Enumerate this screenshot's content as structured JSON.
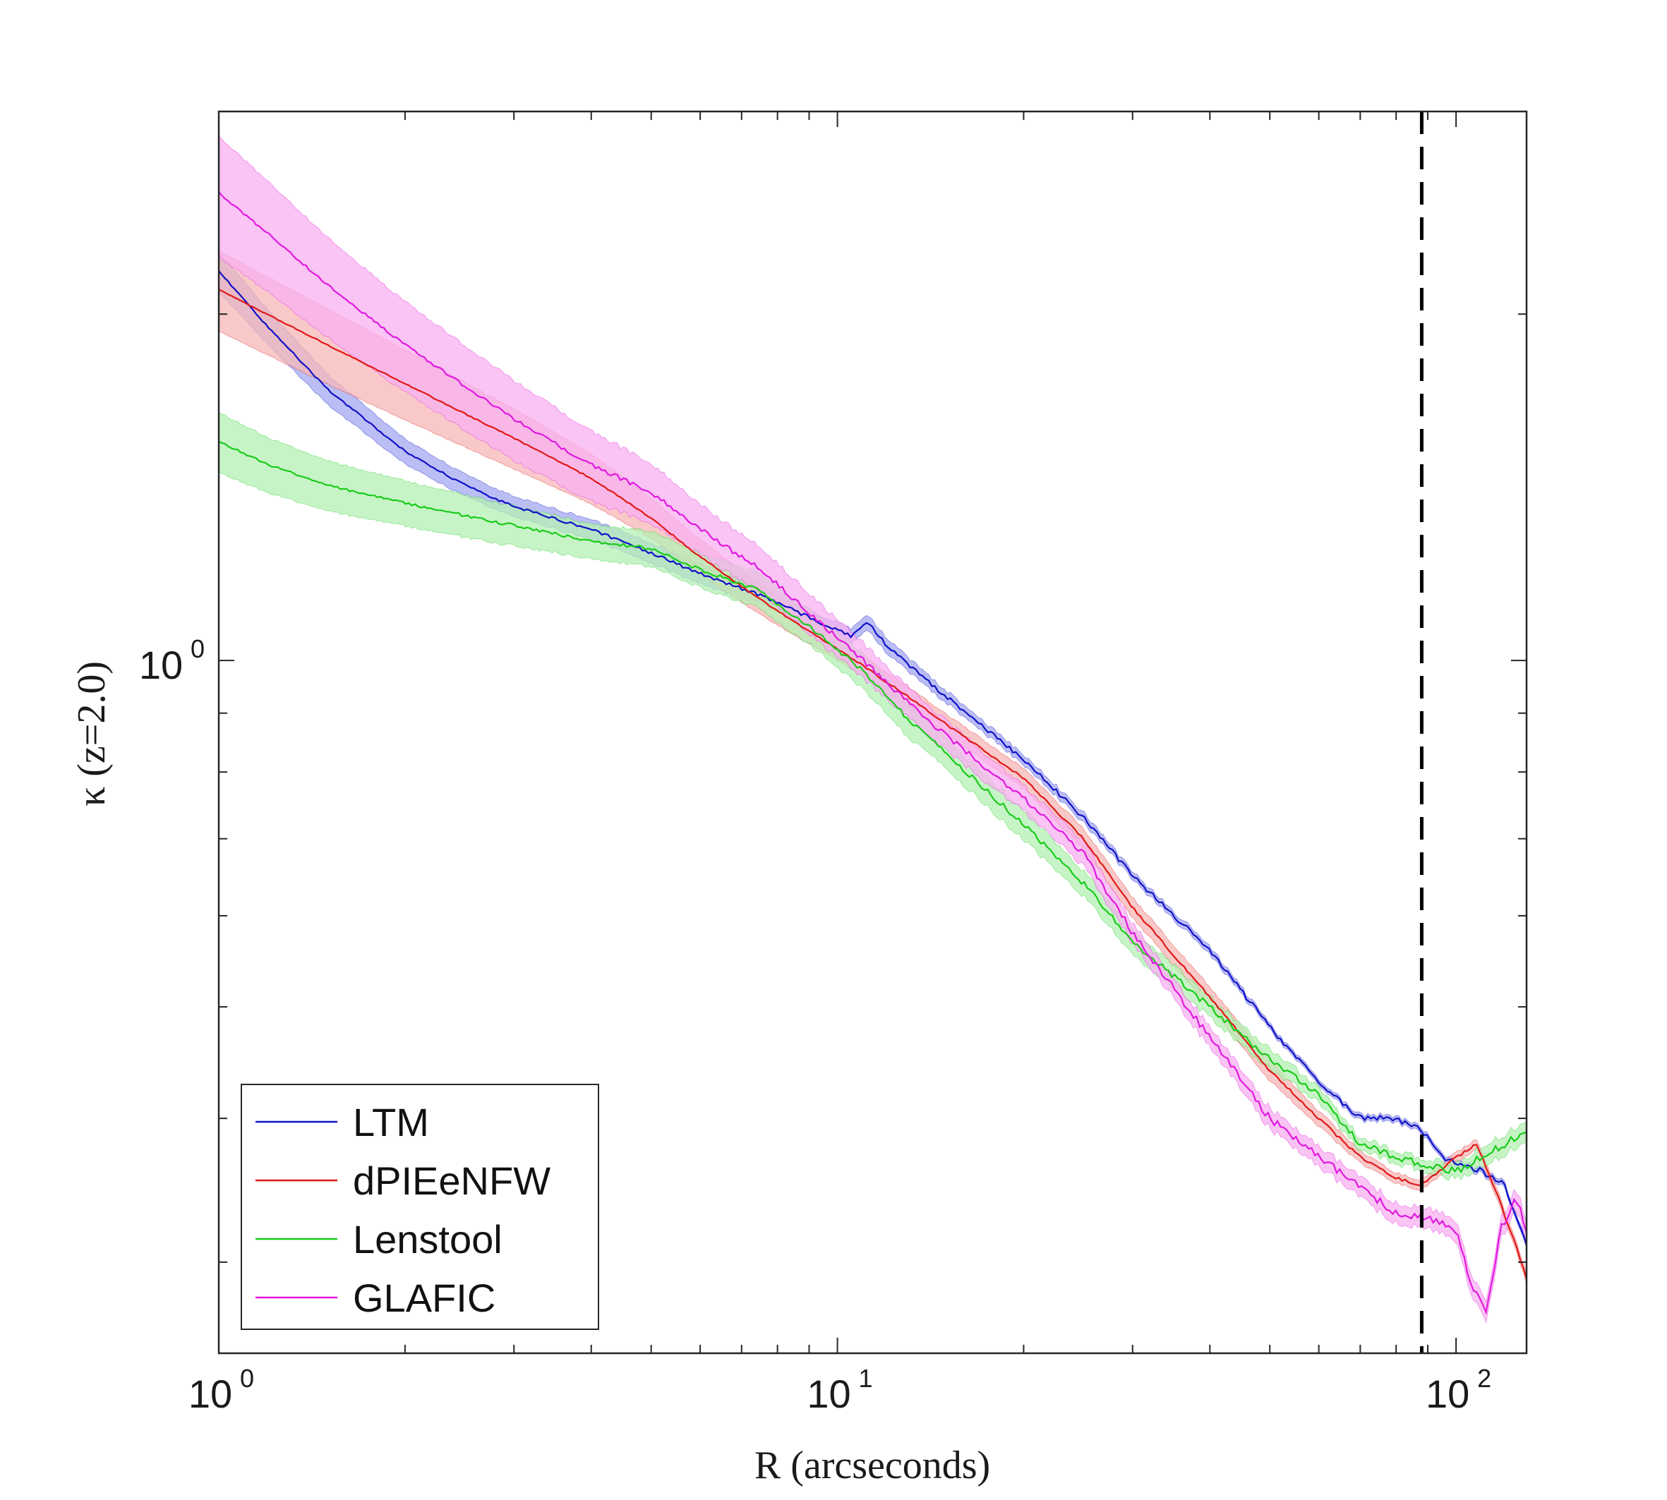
{
  "chart_data": {
    "type": "line",
    "title": "",
    "xlabel": "R (arcseconds)",
    "ylabel": "κ (z=2.0)",
    "xscale": "log",
    "yscale": "log",
    "xlim": [
      1,
      130
    ],
    "ylim": [
      0.25,
      3.0
    ],
    "grid": false,
    "legend_position": "bottom-left",
    "x_ticks": [
      {
        "base": "10",
        "exp": "0"
      },
      {
        "base": "10",
        "exp": "1"
      },
      {
        "base": "10",
        "exp": "2"
      }
    ],
    "y_ticks": [
      {
        "base": "10",
        "exp": "0"
      }
    ],
    "vline": {
      "x": 88,
      "style": "dashed",
      "color": "#000000"
    },
    "series": [
      {
        "name": "LTM",
        "color": "#1010c8",
        "band_color": "#a4a8f0",
        "x": [
          1.0,
          1.2,
          1.5,
          2.0,
          2.5,
          3.0,
          4.0,
          5.0,
          6.0,
          7.5,
          9.0,
          10.5,
          11.2,
          12.0,
          15.0,
          20.0,
          25.0,
          30.0,
          40.0,
          50.0,
          60.0,
          70.0,
          80.0,
          88.0,
          95.0,
          110.0,
          120.0,
          130.0
        ],
        "y": [
          2.18,
          1.95,
          1.72,
          1.52,
          1.42,
          1.36,
          1.3,
          1.24,
          1.19,
          1.14,
          1.09,
          1.05,
          1.08,
          1.03,
          0.93,
          0.82,
          0.73,
          0.65,
          0.56,
          0.48,
          0.43,
          0.4,
          0.4,
          0.39,
          0.37,
          0.36,
          0.35,
          0.31
        ],
        "band_halfwidth": [
          0.04,
          0.035,
          0.03,
          0.025,
          0.022,
          0.02,
          0.02,
          0.02,
          0.02,
          0.018,
          0.015,
          0.015,
          0.015,
          0.015,
          0.012,
          0.01,
          0.01,
          0.008,
          0.008,
          0.006,
          0.006,
          0.006,
          0.006,
          0.006,
          0.006,
          0.006,
          0.006,
          0.006
        ]
      },
      {
        "name": "dPIEeNFW",
        "color": "#e01818",
        "band_color": "#f7b7b7",
        "x": [
          1.0,
          1.5,
          2.0,
          3.0,
          4.0,
          5.0,
          6.0,
          7.5,
          9.0,
          11.0,
          13.0,
          15.0,
          20.0,
          25.0,
          30.0,
          40.0,
          50.0,
          60.0,
          70.0,
          80.0,
          88.0,
          100.0,
          108.0,
          115.0,
          125.0,
          130.0
        ],
        "y": [
          2.1,
          1.88,
          1.74,
          1.56,
          1.44,
          1.33,
          1.23,
          1.13,
          1.06,
          0.99,
          0.93,
          0.88,
          0.79,
          0.7,
          0.61,
          0.51,
          0.44,
          0.4,
          0.37,
          0.355,
          0.35,
          0.37,
          0.38,
          0.35,
          0.31,
          0.29
        ],
        "band_halfwidth": [
          0.08,
          0.075,
          0.07,
          0.06,
          0.05,
          0.04,
          0.035,
          0.03,
          0.025,
          0.02,
          0.02,
          0.02,
          0.02,
          0.02,
          0.02,
          0.02,
          0.02,
          0.015,
          0.012,
          0.01,
          0.01,
          0.01,
          0.01,
          0.01,
          0.01,
          0.01
        ]
      },
      {
        "name": "Lenstool",
        "color": "#18cc18",
        "band_color": "#b4f0b4",
        "x": [
          1.0,
          1.2,
          1.5,
          2.0,
          3.0,
          4.0,
          5.0,
          6.0,
          7.5,
          9.0,
          11.0,
          13.0,
          15.0,
          20.0,
          25.0,
          30.0,
          40.0,
          50.0,
          60.0,
          70.0,
          80.0,
          88.0,
          100.0,
          110.0,
          120.0,
          130.0
        ],
        "y": [
          1.55,
          1.48,
          1.42,
          1.37,
          1.31,
          1.27,
          1.25,
          1.2,
          1.15,
          1.07,
          0.98,
          0.89,
          0.83,
          0.72,
          0.64,
          0.57,
          0.5,
          0.45,
          0.42,
          0.38,
          0.37,
          0.365,
          0.36,
          0.37,
          0.38,
          0.39
        ],
        "band_halfwidth": [
          0.06,
          0.055,
          0.05,
          0.045,
          0.04,
          0.035,
          0.035,
          0.035,
          0.035,
          0.035,
          0.035,
          0.035,
          0.03,
          0.03,
          0.025,
          0.025,
          0.02,
          0.02,
          0.015,
          0.012,
          0.012,
          0.012,
          0.015,
          0.02,
          0.02,
          0.02
        ]
      },
      {
        "name": "GLAFIC",
        "color": "#e018e0",
        "band_color": "#f8b0f0",
        "x": [
          1.0,
          1.2,
          1.5,
          2.0,
          3.0,
          4.0,
          5.0,
          6.0,
          7.5,
          9.0,
          11.0,
          13.0,
          15.0,
          20.0,
          25.0,
          30.0,
          40.0,
          50.0,
          60.0,
          70.0,
          80.0,
          88.0,
          100.0,
          105.0,
          112.0,
          118.0,
          125.0,
          130.0
        ],
        "y": [
          2.55,
          2.35,
          2.12,
          1.88,
          1.62,
          1.48,
          1.4,
          1.3,
          1.2,
          1.1,
          1.0,
          0.92,
          0.86,
          0.76,
          0.68,
          0.58,
          0.47,
          0.4,
          0.37,
          0.35,
          0.33,
          0.33,
          0.32,
          0.29,
          0.27,
          0.32,
          0.34,
          0.32
        ],
        "band_halfwidth": [
          0.12,
          0.11,
          0.1,
          0.09,
          0.08,
          0.07,
          0.06,
          0.05,
          0.045,
          0.04,
          0.035,
          0.03,
          0.03,
          0.025,
          0.025,
          0.02,
          0.02,
          0.02,
          0.02,
          0.02,
          0.02,
          0.02,
          0.02,
          0.02,
          0.02,
          0.02,
          0.02,
          0.02
        ]
      }
    ]
  }
}
